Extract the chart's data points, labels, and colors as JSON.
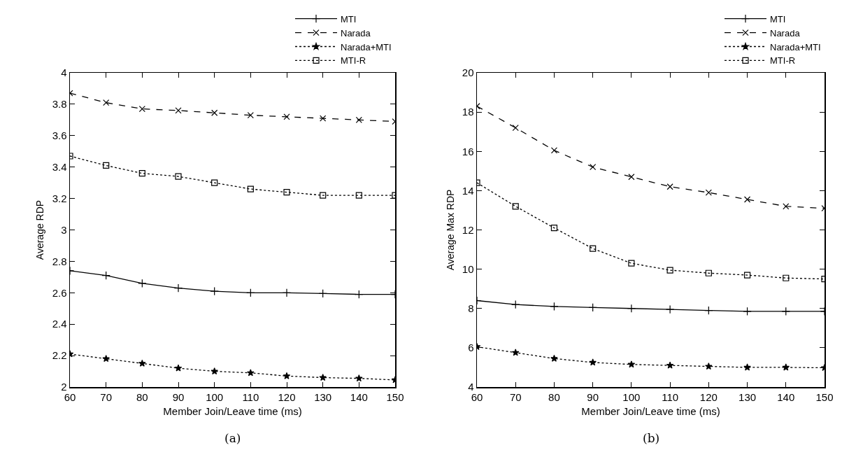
{
  "chart_data": [
    {
      "type": "line",
      "xlabel": "Member Join/Leave time (ms)",
      "ylabel": "Average RDP",
      "annotations": [
        "(a)"
      ],
      "x": [
        60,
        70,
        80,
        90,
        100,
        110,
        120,
        130,
        140,
        150
      ],
      "xlim": [
        60,
        150
      ],
      "xticks": [
        60,
        70,
        80,
        90,
        100,
        110,
        120,
        130,
        140,
        150
      ],
      "ylim": [
        2,
        4
      ],
      "yticks": [
        2,
        2.2,
        2.4,
        2.6,
        2.8,
        3,
        3.2,
        3.4,
        3.6,
        3.8,
        4
      ],
      "grid": false,
      "legend": "top right",
      "series": [
        {
          "name": "MTI",
          "color": "#000000",
          "marker": "plus",
          "line_style": "solid",
          "values": [
            2.74,
            2.71,
            2.66,
            2.63,
            2.61,
            2.6,
            2.6,
            2.595,
            2.59,
            2.59
          ]
        },
        {
          "name": "Narada",
          "color": "#000000",
          "marker": "cross",
          "line_style": "dashed",
          "values": [
            3.87,
            3.81,
            3.77,
            3.76,
            3.745,
            3.73,
            3.72,
            3.71,
            3.7,
            3.69
          ]
        },
        {
          "name": "Narada+MTI",
          "color": "#000000",
          "marker": "star",
          "line_style": "dotted",
          "values": [
            2.21,
            2.18,
            2.15,
            2.12,
            2.1,
            2.09,
            2.07,
            2.06,
            2.055,
            2.045
          ]
        },
        {
          "name": "MTI-R",
          "color": "#000000",
          "marker": "square",
          "line_style": "dotted",
          "values": [
            3.47,
            3.41,
            3.36,
            3.34,
            3.3,
            3.26,
            3.24,
            3.22,
            3.22,
            3.22
          ]
        }
      ]
    },
    {
      "type": "line",
      "xlabel": "Member Join/Leave time (ms)",
      "ylabel": "Average Max RDP",
      "annotations": [
        "(b)"
      ],
      "x": [
        60,
        70,
        80,
        90,
        100,
        110,
        120,
        130,
        140,
        150
      ],
      "xlim": [
        60,
        150
      ],
      "xticks": [
        60,
        70,
        80,
        90,
        100,
        110,
        120,
        130,
        140,
        150
      ],
      "ylim": [
        4,
        20
      ],
      "yticks": [
        4,
        6,
        8,
        10,
        12,
        14,
        16,
        18,
        20
      ],
      "grid": false,
      "legend": "top right",
      "series": [
        {
          "name": "MTI",
          "color": "#000000",
          "marker": "plus",
          "line_style": "solid",
          "values": [
            8.4,
            8.2,
            8.1,
            8.05,
            8.0,
            7.95,
            7.9,
            7.85,
            7.85,
            7.85
          ]
        },
        {
          "name": "Narada",
          "color": "#000000",
          "marker": "cross",
          "line_style": "dashed",
          "values": [
            18.3,
            17.2,
            16.05,
            15.2,
            14.7,
            14.2,
            13.9,
            13.55,
            13.2,
            13.1
          ]
        },
        {
          "name": "Narada+MTI",
          "color": "#000000",
          "marker": "star",
          "line_style": "dotted",
          "values": [
            6.05,
            5.75,
            5.45,
            5.25,
            5.15,
            5.1,
            5.05,
            5.0,
            5.0,
            4.98
          ]
        },
        {
          "name": "MTI-R",
          "color": "#000000",
          "marker": "square",
          "line_style": "dotted",
          "values": [
            14.4,
            13.2,
            12.1,
            11.05,
            10.3,
            9.95,
            9.8,
            9.7,
            9.55,
            9.5
          ]
        }
      ]
    }
  ]
}
